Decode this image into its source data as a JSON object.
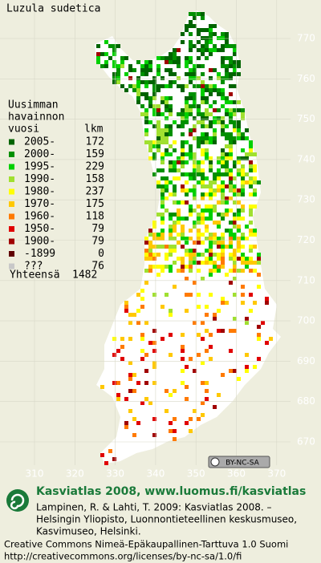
{
  "title": "Luzula sudetica",
  "legend": {
    "heading": [
      "Uusimman",
      "havainnon",
      "vuosi"
    ],
    "count_heading": "lkm",
    "rows": [
      {
        "label": "2005-",
        "count": 172,
        "color": "#006400"
      },
      {
        "label": "2000-",
        "count": 159,
        "color": "#009000"
      },
      {
        "label": "1995-",
        "count": 229,
        "color": "#00d000"
      },
      {
        "label": "1990-",
        "count": 158,
        "color": "#a0e030"
      },
      {
        "label": "1980-",
        "count": 237,
        "color": "#ffff00"
      },
      {
        "label": "1970-",
        "count": 175,
        "color": "#ffc800"
      },
      {
        "label": "1960-",
        "count": 118,
        "color": "#ff7a00"
      },
      {
        "label": "1950-",
        "count": 79,
        "color": "#e00000"
      },
      {
        "label": "1900-",
        "count": 79,
        "color": "#a00000"
      },
      {
        "label": "-1899",
        "count": 0,
        "color": "#600000"
      },
      {
        "label": "???",
        "count": 76,
        "color": "#c8c8c8"
      }
    ],
    "total_label": "Yhteensä",
    "total": 1482
  },
  "y_axis": [
    770,
    760,
    750,
    740,
    730,
    720,
    710,
    700,
    690,
    680,
    670
  ],
  "x_axis": [
    310,
    320,
    330,
    340,
    350,
    360,
    370
  ],
  "license_badge": "BY-NC-SA",
  "footer": {
    "site": "Kasviatlas 2008, www.luomus.fi/kasviatlas",
    "citation": [
      "Lampinen, R. & Lahti, T. 2009: Kasviatlas 2008. –",
      "Helsingin Yliopisto, Luonnontieteellinen keskusmuseo,",
      "Kasvimuseo, Helsinki."
    ],
    "license": [
      "Creative Commons Nimeä-Epäkaupallinen-Tarttuva 1.0 Suomi",
      "http://creativecommons.org/licenses/by-nc-sa/1.0/fi"
    ]
  }
}
